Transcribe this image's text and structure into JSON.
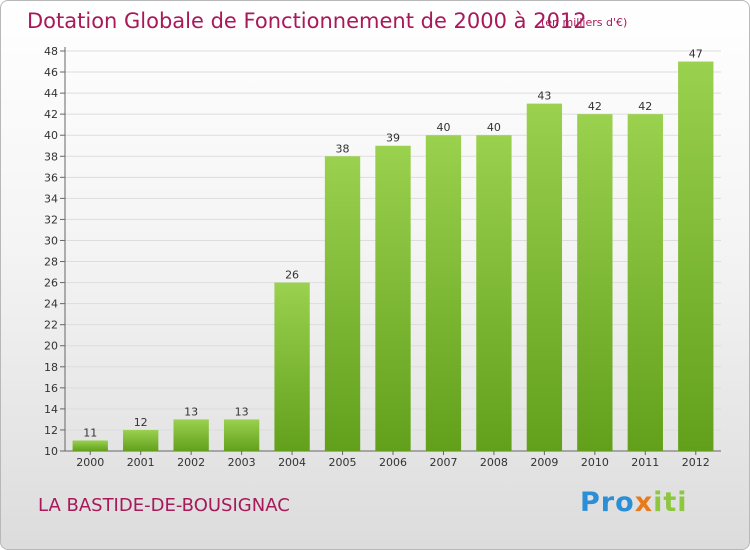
{
  "title": "Dotation Globale de Fonctionnement de 2000 à 2012",
  "subtitle": "(en milliers d'€)",
  "commune": "LA BASTIDE-DE-BOUSIGNAC",
  "logo": {
    "text": "Proxiti",
    "letters": [
      {
        "ch": "P",
        "color": "#2a8fd6"
      },
      {
        "ch": "r",
        "color": "#2a8fd6"
      },
      {
        "ch": "o",
        "color": "#2a8fd6"
      },
      {
        "ch": "x",
        "color": "#e97a1b"
      },
      {
        "ch": "i",
        "color": "#8dc63f"
      },
      {
        "ch": "t",
        "color": "#8dc63f"
      },
      {
        "ch": "i",
        "color": "#8dc63f"
      }
    ]
  },
  "colors": {
    "title": "#a8185a",
    "bar_top": "#9ad14e",
    "bar_bottom": "#62a01b",
    "grid": "#dddddd"
  },
  "chart_data": {
    "type": "bar",
    "title": "Dotation Globale de Fonctionnement de 2000 à 2012",
    "subtitle": "(en milliers d'€)",
    "categories": [
      "2000",
      "2001",
      "2002",
      "2003",
      "2004",
      "2005",
      "2006",
      "2007",
      "2008",
      "2009",
      "2010",
      "2011",
      "2012"
    ],
    "values": [
      11,
      12,
      13,
      13,
      26,
      38,
      39,
      40,
      40,
      43,
      42,
      42,
      47
    ],
    "ylim": [
      10,
      48
    ],
    "yticks": [
      10,
      12,
      14,
      16,
      18,
      20,
      22,
      24,
      26,
      28,
      30,
      32,
      34,
      36,
      38,
      40,
      42,
      44,
      46,
      48
    ],
    "grid": true,
    "data_labels": true
  }
}
